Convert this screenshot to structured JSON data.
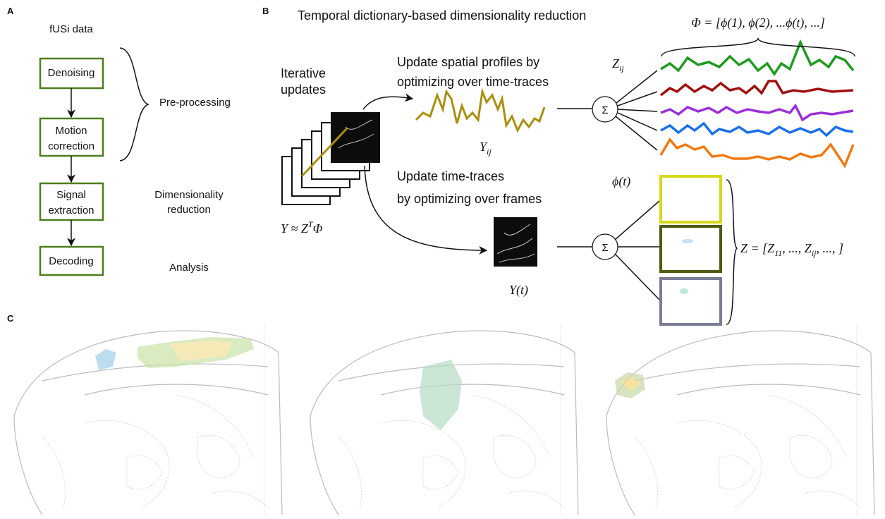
{
  "panel_a": {
    "label": "A",
    "title": "fUSi data",
    "steps": [
      [
        "Denoising"
      ],
      [
        "Motion",
        "correction"
      ],
      [
        "Signal",
        "extraction"
      ],
      [
        "Decoding"
      ]
    ],
    "stages": [
      [
        "Pre-processing"
      ],
      [
        "Dimensionality",
        "reduction"
      ],
      [
        "Analysis"
      ]
    ]
  },
  "panel_b": {
    "label": "B",
    "title": "Temporal dictionary-based dimensionality reduction",
    "iterative": [
      "Iterative",
      "updates"
    ],
    "model": [
      "Y ≈ Z",
      "T",
      "Φ"
    ],
    "spatial_update": [
      "Update spatial profiles by",
      "optimizing over time-traces"
    ],
    "temporal_update": [
      "Update time-traces",
      "by optimizing over frames"
    ],
    "y_ij": [
      "Y",
      "ij"
    ],
    "z_ij": [
      "Z",
      "ij"
    ],
    "y_t": "Y(t)",
    "phi_t": "ϕ(t)",
    "sum_symbol": "Σ",
    "phi_def": "Φ = [ϕ(1), ϕ(2), ...ϕ(t), ...]",
    "z_def": [
      "Z = [Z",
      "11",
      ", ..., Z",
      "ij",
      ", ..., ]"
    ]
  },
  "panel_c": {
    "label": "C"
  }
}
